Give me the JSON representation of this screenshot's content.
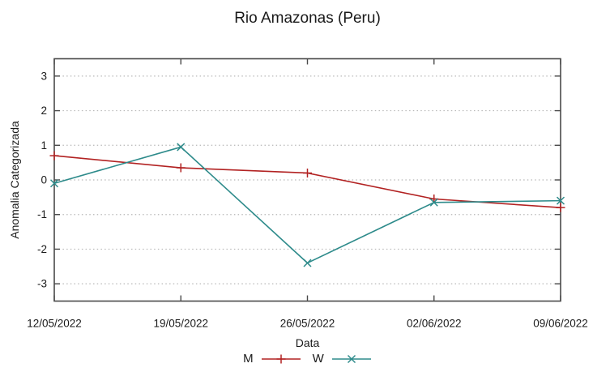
{
  "chart_data": {
    "type": "line",
    "title": "Rio Amazonas (Peru)",
    "xlabel": "Data",
    "ylabel": "Anomalia Categorizada",
    "categories": [
      "12/05/2022",
      "19/05/2022",
      "26/05/2022",
      "02/06/2022",
      "09/06/2022"
    ],
    "series": [
      {
        "name": "M",
        "color": "#b22222",
        "marker": "plus",
        "values": [
          0.7,
          0.35,
          0.2,
          -0.55,
          -0.8
        ]
      },
      {
        "name": "W",
        "color": "#2e8b8b",
        "marker": "cross",
        "values": [
          -0.1,
          0.95,
          -2.4,
          -0.65,
          -0.6
        ]
      }
    ],
    "yticks": [
      -3,
      -2,
      -1,
      0,
      1,
      2,
      3
    ],
    "ylim": [
      -3.5,
      3.5
    ],
    "grid": "horizontal-dotted",
    "legend_position": "bottom-center"
  },
  "style": {
    "grid_color": "#b8b8b8",
    "border_color": "#4a4a4a",
    "text_color": "#1a1a1a"
  }
}
